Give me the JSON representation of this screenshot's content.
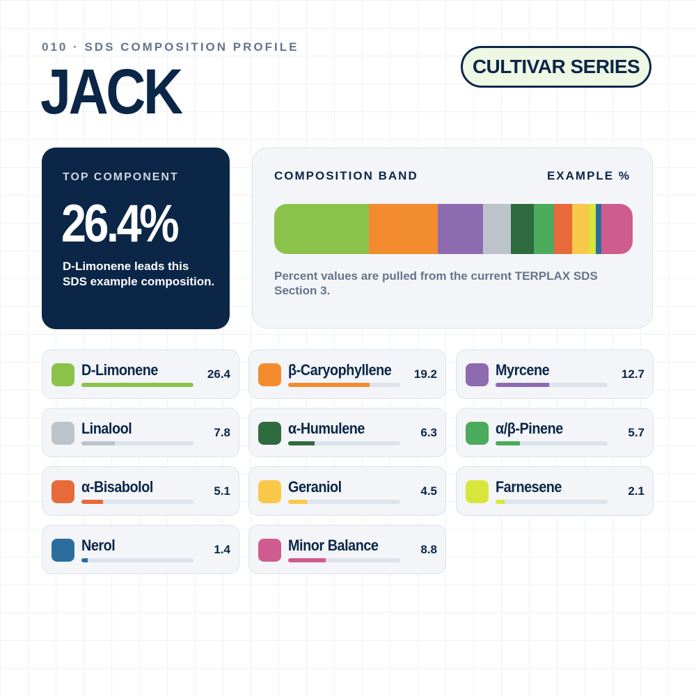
{
  "header": {
    "kicker": "010 · SDS COMPOSITION PROFILE",
    "title": "JACK",
    "badge": "CULTIVAR SERIES"
  },
  "top_card": {
    "label": "TOP COMPONENT",
    "value": "26.4%",
    "note": "D-Limonene leads this SDS example composition."
  },
  "band_card": {
    "title": "COMPOSITION BAND",
    "unit_label": "EXAMPLE %",
    "note": "Percent values are pulled from the current TERPLAX SDS Section 3."
  },
  "chart_data": {
    "type": "composition",
    "categories": [
      "D-Limonene",
      "β-Caryophyllene",
      "Myrcene",
      "Linalool",
      "α-Humulene",
      "α/β-Pinene",
      "α-Bisabolol",
      "Geraniol",
      "Farnesene",
      "Nerol",
      "Minor Balance"
    ],
    "values": [
      26.4,
      19.2,
      12.7,
      7.8,
      6.3,
      5.7,
      5.1,
      4.5,
      2.1,
      1.4,
      8.8
    ],
    "colors": [
      "#8bc34a",
      "#f28c2e",
      "#8e6bb0",
      "#bdc3ca",
      "#2e6b3f",
      "#4caa5c",
      "#e8693a",
      "#f9c74a",
      "#d8e63c",
      "#2b6e9e",
      "#cf5c8f"
    ]
  }
}
